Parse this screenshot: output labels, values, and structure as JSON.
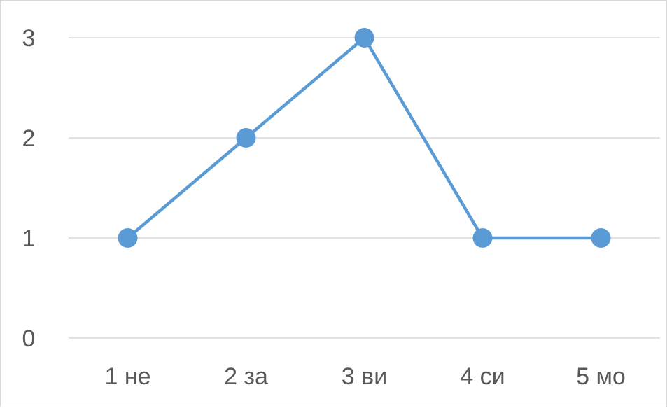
{
  "chart_data": {
    "type": "line",
    "categories": [
      "1 не",
      "2 за",
      "3 ви",
      "4 си",
      "5 мо"
    ],
    "series": [
      {
        "values": [
          1,
          2,
          3,
          1,
          1
        ],
        "color": "#5b9bd5"
      }
    ],
    "ylim": [
      0,
      3
    ],
    "yticks": [
      0,
      1,
      2,
      3
    ],
    "grid": true,
    "legend": "none",
    "title": "",
    "xlabel": "",
    "ylabel": ""
  }
}
